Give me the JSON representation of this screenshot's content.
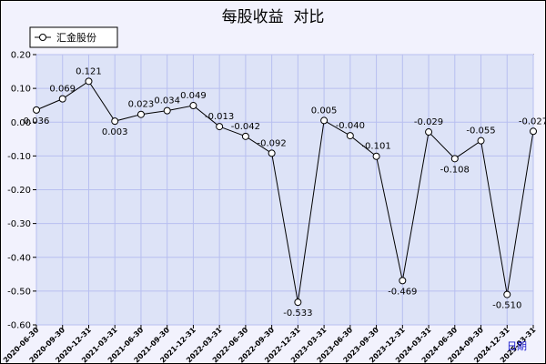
{
  "chart_data": {
    "type": "line",
    "title": "每股收益  对比",
    "xlabel": "日期",
    "ylabel": "",
    "ylim": [
      -0.6,
      0.2
    ],
    "yticks": [
      "0.20",
      "0.10",
      "0.00",
      "-0.10",
      "-0.20",
      "-0.30",
      "-0.40",
      "-0.50",
      "-0.60"
    ],
    "ytick_values": [
      0.2,
      0.1,
      0.0,
      -0.1,
      -0.2,
      -0.3,
      -0.4,
      -0.5,
      -0.6
    ],
    "grid": true,
    "legend_position": "top-left",
    "categories": [
      "2020-06-30",
      "2020-09-30",
      "2020-12-31",
      "2021-03-31",
      "2021-06-30",
      "2021-09-30",
      "2021-12-31",
      "2022-03-31",
      "2022-06-30",
      "2022-09-30",
      "2022-12-31",
      "2023-03-31",
      "2023-06-30",
      "2023-09-30",
      "2023-12-31",
      "2024-03-31",
      "2024-06-30",
      "2024-09-30",
      "2024-12-31",
      "2025-03-31"
    ],
    "series": [
      {
        "name": "汇金股份",
        "color": "#000000",
        "values": [
          0.036,
          0.069,
          0.121,
          0.003,
          0.023,
          0.034,
          0.049,
          -0.013,
          -0.042,
          -0.092,
          -0.533,
          0.005,
          -0.04,
          -0.101,
          -0.469,
          -0.029,
          -0.108,
          -0.055,
          -0.51,
          -0.027
        ],
        "labels": [
          "0.036",
          "0.069",
          "0.121",
          "0.003",
          "0.023",
          "0.034",
          "0.049",
          "-0.013",
          "-0.042",
          "-0.092",
          "-0.533",
          "0.005",
          "-0.040",
          "-0.101",
          "-0.469",
          "-0.029",
          "-0.108",
          "-0.055",
          "-0.510",
          "-0.027"
        ]
      }
    ],
    "colors": {
      "plot_background": "#dde3f7",
      "page_background": "#f2f2fd",
      "grid": "#b8bff0",
      "axis_title": "#1a1acc"
    }
  }
}
